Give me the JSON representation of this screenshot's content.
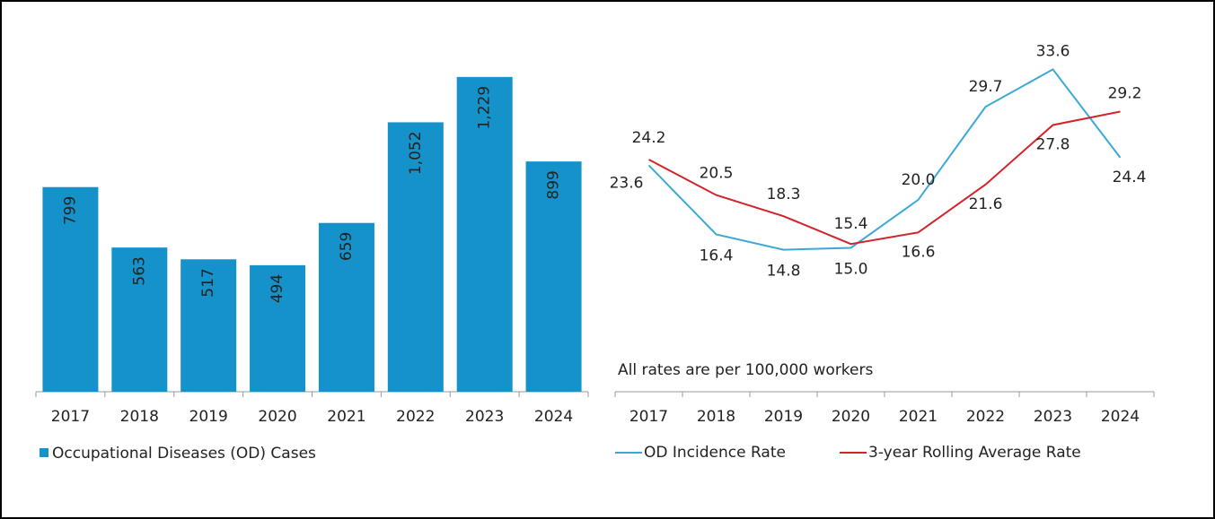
{
  "chart_data": [
    {
      "type": "bar",
      "categories": [
        "2017",
        "2018",
        "2019",
        "2020",
        "2021",
        "2022",
        "2023",
        "2024"
      ],
      "series": [
        {
          "name": "Occupational Diseases (OD) Cases",
          "color": "#1592c9",
          "values": [
            799,
            563,
            517,
            494,
            659,
            1052,
            1229,
            899
          ],
          "value_labels": [
            "799",
            "563",
            "517",
            "494",
            "659",
            "1,052",
            "1,229",
            "899"
          ]
        }
      ],
      "ylim": [
        0,
        1400
      ]
    },
    {
      "type": "line",
      "categories": [
        "2017",
        "2018",
        "2019",
        "2020",
        "2021",
        "2022",
        "2023",
        "2024"
      ],
      "annotation": "All rates are per 100,000 workers",
      "series": [
        {
          "name": "OD Incidence Rate",
          "color": "#3ba9d6",
          "values": [
            23.6,
            16.4,
            14.8,
            15.0,
            20.0,
            29.7,
            33.6,
            24.4
          ],
          "value_labels": [
            "23.6",
            "16.4",
            "14.8",
            "15.0",
            "20.0",
            "29.7",
            "33.6",
            "24.4"
          ]
        },
        {
          "name": "3-year Rolling Average Rate",
          "color": "#d2232a",
          "values": [
            24.2,
            20.5,
            18.3,
            15.4,
            16.6,
            21.6,
            27.8,
            29.2
          ],
          "value_labels": [
            "24.2",
            "20.5",
            "18.3",
            "15.4",
            "16.6",
            "21.6",
            "27.8",
            "29.2"
          ]
        }
      ],
      "ylim": [
        0,
        37
      ]
    }
  ]
}
